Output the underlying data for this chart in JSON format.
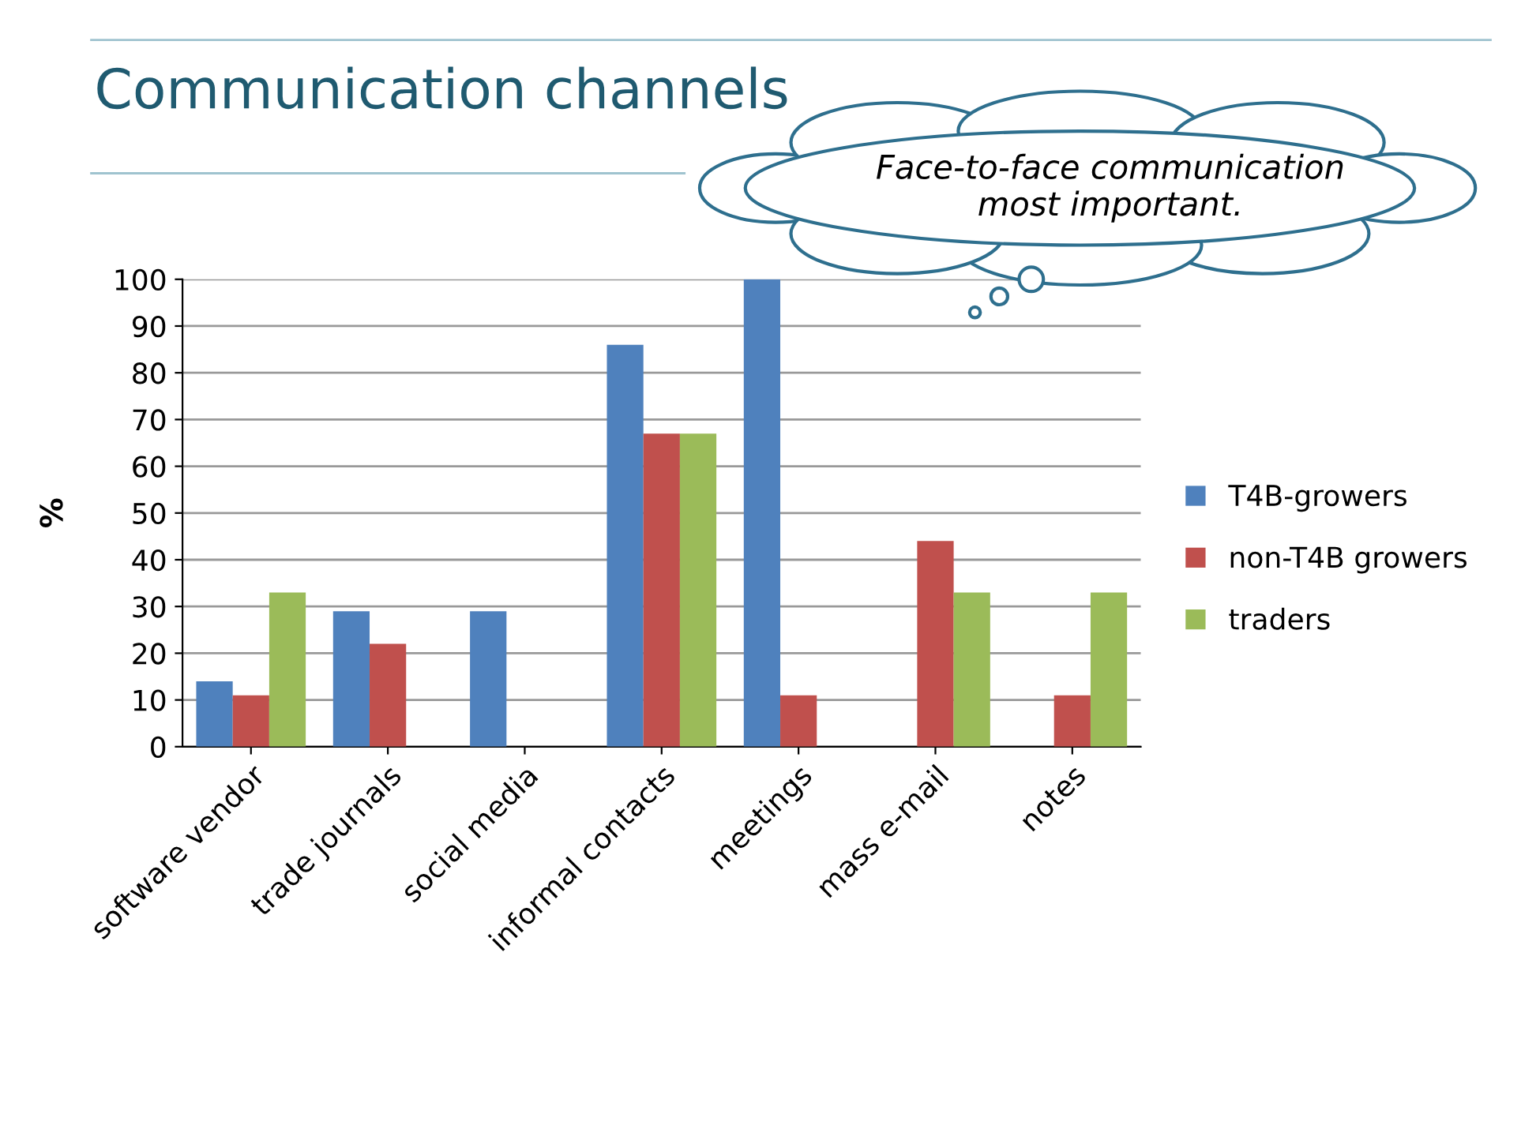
{
  "chart_data": {
    "type": "bar",
    "title": "Communication channels",
    "ylabel": "%",
    "categories": [
      "software vendor",
      "trade journals",
      "social media",
      "informal contacts",
      "meetings",
      "mass e-mail",
      "notes"
    ],
    "series": [
      {
        "name": "T4B-growers",
        "color": "#4f81bd",
        "values": [
          14,
          29,
          29,
          86,
          100,
          null,
          null
        ]
      },
      {
        "name": "non-T4B growers",
        "color": "#c0504d",
        "values": [
          11,
          22,
          null,
          67,
          11,
          44,
          11
        ]
      },
      {
        "name": "traders",
        "color": "#9bbb59",
        "values": [
          33,
          null,
          null,
          67,
          null,
          33,
          33
        ]
      }
    ],
    "ylim": [
      0,
      100
    ],
    "yticks": [
      0,
      10,
      20,
      30,
      40,
      50,
      60,
      70,
      80,
      90,
      100
    ],
    "grid": "y",
    "legend": "right",
    "annotations": [
      "Face-to-face communication\nmost important."
    ]
  }
}
